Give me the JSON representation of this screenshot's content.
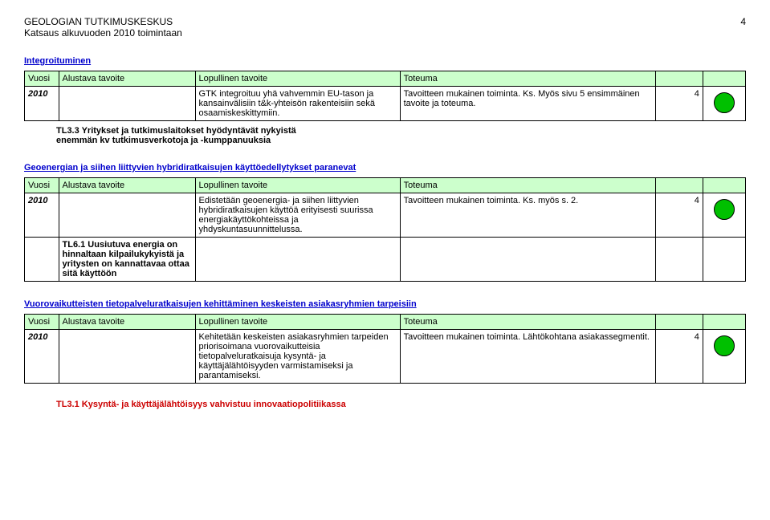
{
  "header": {
    "org": "GEOLOGIAN TUTKIMUSKESKUS",
    "subtitle": "Katsaus alkuvuoden 2010 toimintaan",
    "page_number": "4"
  },
  "columns": {
    "year": "Vuosi",
    "pre": "Alustava tavoite",
    "final": "Lopullinen tavoite",
    "outcome": "Toteuma"
  },
  "sections": [
    {
      "title": "Integroituminen",
      "row": {
        "year": "2010",
        "pre": "",
        "final": "GTK integroituu yhä vahvemmin EU-tason ja kansainvälisiin t&k-yhteisön rakenteisiin sekä osaamiskeskittymiin.",
        "outcome": "Tavoitteen mukainen toiminta. Ks. Myös sivu 5 ensimmäinen tavoite ja toteuma.",
        "score": "4",
        "circle_color": "green"
      },
      "note": "TL3.3 Yritykset ja tutkimuslaitokset hyödyntävät nykyistä enemmän kv tutkimusverkotoja ja -kumppanuuksia"
    },
    {
      "title": "Geoenergian  ja siihen liittyvien hybridiratkaisujen käyttöedellytykset paranevat",
      "row": {
        "year": "2010",
        "pre": "",
        "final": "Edistetään geoenergia- ja siihen liittyvien hybridiratkaisujen käyttöä erityisesti suurissa energiakäyttökohteissa ja yhdyskuntasuunnittelussa.",
        "outcome": "Tavoitteen mukainen toiminta. Ks. myös s. 2.",
        "score": "4",
        "circle_color": "green"
      },
      "inline_note": "TL6.1 Uusiutuva energia on hinnaltaan kilpailukykyistä ja yritysten on kannattavaa ottaa sitä käyttöön"
    },
    {
      "title": "Vuorovaikutteisten tietopalveluratkaisujen kehittäminen keskeisten asiakasryhmien tarpeisiin",
      "row": {
        "year": "2010",
        "pre": "",
        "final": "Kehitetään keskeisten asiakasryhmien tarpeiden priorisoimana vuorovaikutteisia tietopalveluratkaisuja kysyntä- ja käyttäjälähtöisyyden varmistamiseksi ja parantamiseksi.",
        "outcome": "Tavoitteen mukainen toiminta. Lähtökohtana asiakassegmentit.",
        "score": "4",
        "circle_color": "green"
      }
    }
  ],
  "footer_note": "TL3.1 Kysyntä- ja käyttäjälähtöisyys vahvistuu innovaatiopolitiikassa"
}
